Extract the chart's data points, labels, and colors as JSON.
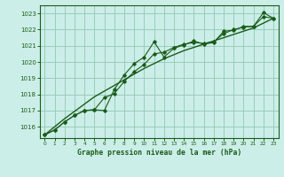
{
  "title": "Graphe pression niveau de la mer (hPa)",
  "bg_color": "#cceee8",
  "grid_color": "#99ccbb",
  "line_color": "#1a5c1a",
  "xlim": [
    -0.5,
    23.5
  ],
  "ylim": [
    1015.3,
    1023.5
  ],
  "yticks": [
    1016,
    1017,
    1018,
    1019,
    1020,
    1021,
    1022,
    1023
  ],
  "xticks": [
    0,
    1,
    2,
    3,
    4,
    5,
    6,
    7,
    8,
    9,
    10,
    11,
    12,
    13,
    14,
    15,
    16,
    17,
    18,
    19,
    20,
    21,
    22,
    23
  ],
  "series1": [
    1015.5,
    1015.8,
    1016.3,
    1016.7,
    1017.0,
    1017.05,
    1017.0,
    1018.3,
    1019.2,
    1019.9,
    1020.3,
    1021.25,
    1020.3,
    1020.85,
    1021.05,
    1021.3,
    1021.1,
    1021.2,
    1021.9,
    1021.95,
    1022.2,
    1022.2,
    1023.05,
    1022.7
  ],
  "series2": [
    1015.5,
    1015.8,
    1016.3,
    1016.7,
    1017.0,
    1017.05,
    1017.8,
    1018.05,
    1018.8,
    1019.4,
    1019.85,
    1020.5,
    1020.6,
    1020.9,
    1021.1,
    1021.2,
    1021.15,
    1021.25,
    1021.75,
    1022.0,
    1022.15,
    1022.2,
    1022.8,
    1022.7
  ],
  "trend": [
    1015.5,
    1016.0,
    1016.5,
    1016.95,
    1017.4,
    1017.85,
    1018.2,
    1018.55,
    1018.9,
    1019.25,
    1019.6,
    1019.9,
    1020.2,
    1020.45,
    1020.7,
    1020.9,
    1021.1,
    1021.3,
    1021.5,
    1021.7,
    1021.9,
    1022.1,
    1022.4,
    1022.7
  ]
}
